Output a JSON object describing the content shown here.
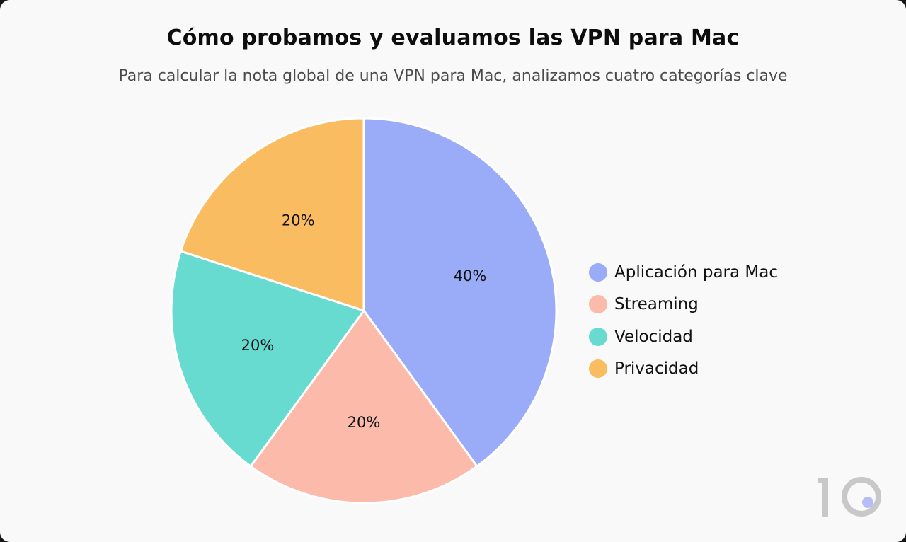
{
  "chart_data": {
    "type": "pie",
    "title": "Cómo probamos y evaluamos las VPN para Mac",
    "subtitle": "Para calcular la nota global de una VPN para Mac, analizamos cuatro categorías clave",
    "slices": [
      {
        "label": "Aplicación para Mac",
        "value": 40,
        "value_label": "40%",
        "color": "#9aacf8"
      },
      {
        "label": "Streaming",
        "value": 20,
        "value_label": "20%",
        "color": "#fbbaaa"
      },
      {
        "label": "Velocidad",
        "value": 20,
        "value_label": "20%",
        "color": "#68dbd0"
      },
      {
        "label": "Privacidad",
        "value": 20,
        "value_label": "20%",
        "color": "#f9bc61"
      }
    ],
    "legend_position": "right"
  },
  "logo": {
    "text": "10",
    "color": "#c8c8c8",
    "dot_color": "#b5bdf7"
  }
}
